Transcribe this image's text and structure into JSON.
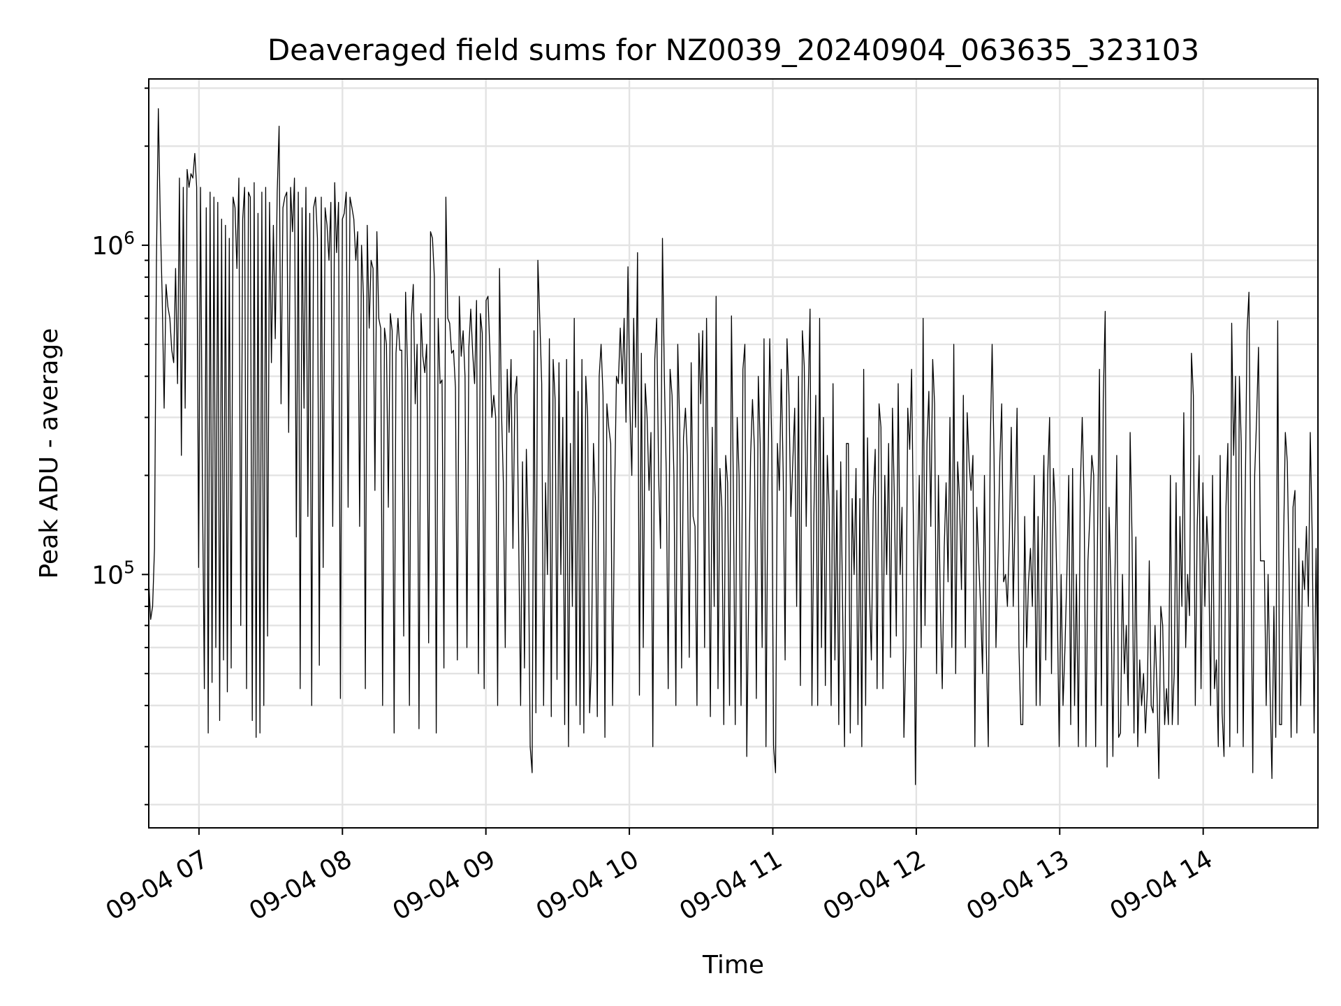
{
  "chart_data": {
    "type": "line",
    "title": "Deaveraged field sums for NZ0039_20240904_063635_323103",
    "xlabel": "Time",
    "ylabel": "Peak ADU - average",
    "yscale": "log",
    "ylim": [
      17000,
      3200000
    ],
    "xlim": [
      "2024-09-04 06:39",
      "2024-09-04 14:48"
    ],
    "x_ticks": [
      "09-04 07",
      "09-04 08",
      "09-04 09",
      "09-04 10",
      "09-04 11",
      "09-04 12",
      "09-04 13",
      "09-04 14"
    ],
    "y_ticks": [
      {
        "base": "10",
        "exp": "5",
        "value": 100000
      },
      {
        "base": "10",
        "exp": "6",
        "value": 1000000
      }
    ],
    "grid": true,
    "legend": "none",
    "line_color": "#000000",
    "series": [
      {
        "x_start": "2024-09-04 06:39",
        "x_end": "2024-09-04 14:48",
        "values": [
          95000,
          73000,
          80000,
          120000,
          900000,
          2600000,
          1200000,
          700000,
          320000,
          760000,
          650000,
          600000,
          480000,
          440000,
          850000,
          380000,
          1600000,
          230000,
          1500000,
          320000,
          1700000,
          1500000,
          1650000,
          1600000,
          1900000,
          1500000,
          105000,
          1500000,
          190000,
          45000,
          1300000,
          33000,
          1450000,
          47000,
          1400000,
          60000,
          1350000,
          36000,
          1200000,
          55000,
          1150000,
          44000,
          1050000,
          52000,
          1400000,
          1300000,
          850000,
          1600000,
          70000,
          1200000,
          1500000,
          45000,
          1450000,
          1400000,
          36000,
          1550000,
          32000,
          1250000,
          33000,
          1450000,
          40000,
          1500000,
          65000,
          1350000,
          440000,
          1150000,
          520000,
          1450000,
          2300000,
          330000,
          1300000,
          1400000,
          1450000,
          270000,
          1500000,
          1100000,
          1600000,
          130000,
          1450000,
          45000,
          1300000,
          320000,
          1500000,
          150000,
          1250000,
          40000,
          1300000,
          1400000,
          1050000,
          53000,
          1400000,
          105000,
          1300000,
          1150000,
          900000,
          1350000,
          140000,
          1550000,
          950000,
          1350000,
          42000,
          1200000,
          1250000,
          1450000,
          160000,
          1400000,
          1300000,
          1200000,
          900000,
          1100000,
          140000,
          1000000,
          700000,
          45000,
          1150000,
          560000,
          900000,
          850000,
          180000,
          1100000,
          600000,
          560000,
          40000,
          560000,
          500000,
          160000,
          620000,
          550000,
          33000,
          470000,
          600000,
          480000,
          480000,
          65000,
          720000,
          420000,
          40000,
          600000,
          760000,
          330000,
          500000,
          34000,
          620000,
          460000,
          410000,
          500000,
          62000,
          1100000,
          1050000,
          800000,
          33000,
          600000,
          380000,
          390000,
          52000,
          1400000,
          600000,
          580000,
          470000,
          480000,
          370000,
          55000,
          700000,
          460000,
          550000,
          400000,
          60000,
          490000,
          640000,
          470000,
          380000,
          680000,
          50000,
          620000,
          540000,
          45000,
          680000,
          700000,
          470000,
          300000,
          350000,
          300000,
          40000,
          850000,
          320000,
          190000,
          60000,
          420000,
          270000,
          450000,
          120000,
          350000,
          400000,
          130000,
          40000,
          220000,
          52000,
          240000,
          130000,
          30000,
          25000,
          550000,
          38000,
          900000,
          600000,
          380000,
          40000,
          190000,
          100000,
          520000,
          37000,
          450000,
          340000,
          48000,
          440000,
          100000,
          300000,
          35000,
          450000,
          30000,
          250000,
          80000,
          600000,
          40000,
          360000,
          35000,
          450000,
          33000,
          400000,
          300000,
          38000,
          55000,
          250000,
          170000,
          37000,
          400000,
          500000,
          350000,
          32000,
          330000,
          280000,
          250000,
          40000,
          170000,
          400000,
          380000,
          560000,
          380000,
          600000,
          290000,
          860000,
          330000,
          200000,
          600000,
          280000,
          950000,
          43000,
          470000,
          60000,
          380000,
          300000,
          180000,
          270000,
          30000,
          450000,
          600000,
          200000,
          120000,
          1050000,
          400000,
          200000,
          45000,
          420000,
          350000,
          200000,
          40000,
          500000,
          280000,
          52000,
          260000,
          320000,
          230000,
          56000,
          440000,
          150000,
          140000,
          40000,
          540000,
          330000,
          550000,
          60000,
          600000,
          190000,
          37000,
          280000,
          80000,
          700000,
          45000,
          210000,
          160000,
          35000,
          230000,
          190000,
          40000,
          610000,
          180000,
          35000,
          300000,
          200000,
          40000,
          420000,
          500000,
          28000,
          90000,
          230000,
          340000,
          240000,
          42000,
          400000,
          250000,
          60000,
          520000,
          30000,
          190000,
          520000,
          250000,
          30000,
          25000,
          250000,
          180000,
          420000,
          200000,
          55000,
          520000,
          350000,
          150000,
          220000,
          320000,
          80000,
          400000,
          46000,
          550000,
          430000,
          140000,
          330000,
          640000,
          40000,
          150000,
          350000,
          40000,
          600000,
          60000,
          300000,
          46000,
          230000,
          160000,
          40000,
          380000,
          55000,
          180000,
          35000,
          220000,
          80000,
          30000,
          250000,
          250000,
          33000,
          170000,
          100000,
          210000,
          35000,
          170000,
          30000,
          420000,
          40000,
          260000,
          90000,
          55000,
          170000,
          240000,
          45000,
          330000,
          280000,
          45000,
          200000,
          100000,
          250000,
          56000,
          320000,
          170000,
          65000,
          380000,
          100000,
          160000,
          32000,
          60000,
          320000,
          240000,
          420000,
          130000,
          23000,
          100000,
          200000,
          60000,
          600000,
          70000,
          250000,
          360000,
          140000,
          450000,
          330000,
          50000,
          200000,
          80000,
          45000,
          120000,
          190000,
          95000,
          300000,
          60000,
          500000,
          50000,
          220000,
          170000,
          90000,
          350000,
          60000,
          310000,
          220000,
          180000,
          230000,
          30000,
          160000,
          110000,
          80000,
          50000,
          200000,
          60000,
          30000,
          240000,
          500000,
          230000,
          60000,
          110000,
          220000,
          330000,
          95000,
          100000,
          80000,
          130000,
          280000,
          80000,
          150000,
          320000,
          60000,
          35000,
          35000,
          150000,
          60000,
          95000,
          120000,
          80000,
          200000,
          40000,
          150000,
          40000,
          120000,
          230000,
          55000,
          200000,
          300000,
          50000,
          210000,
          160000,
          80000,
          30000,
          100000,
          40000,
          60000,
          100000,
          200000,
          35000,
          210000,
          40000,
          100000,
          30000,
          180000,
          300000,
          170000,
          30000,
          110000,
          150000,
          230000,
          200000,
          30000,
          130000,
          420000,
          40000,
          340000,
          630000,
          26000,
          160000,
          90000,
          28000,
          90000,
          230000,
          32000,
          33000,
          100000,
          50000,
          70000,
          40000,
          270000,
          130000,
          33000,
          130000,
          30000,
          55000,
          40000,
          50000,
          33000,
          45000,
          110000,
          40000,
          38000,
          70000,
          45000,
          24000,
          80000,
          70000,
          35000,
          45000,
          35000,
          200000,
          35000,
          50000,
          190000,
          35000,
          150000,
          80000,
          310000,
          60000,
          100000,
          75000,
          470000,
          350000,
          40000,
          140000,
          230000,
          45000,
          190000,
          80000,
          150000,
          110000,
          40000,
          200000,
          45000,
          55000,
          30000,
          230000,
          38000,
          28000,
          160000,
          250000,
          30000,
          580000,
          230000,
          400000,
          33000,
          400000,
          250000,
          30000,
          160000,
          550000,
          720000,
          120000,
          25000,
          200000,
          300000,
          490000,
          110000,
          110000,
          110000,
          40000,
          100000,
          45000,
          24000,
          80000,
          32000,
          590000,
          35000,
          35000,
          120000,
          270000,
          220000,
          100000,
          32000,
          160000,
          180000,
          33000,
          120000,
          40000,
          110000,
          90000,
          140000,
          80000,
          270000,
          130000,
          33000,
          120000,
          45000
        ]
      }
    ]
  }
}
